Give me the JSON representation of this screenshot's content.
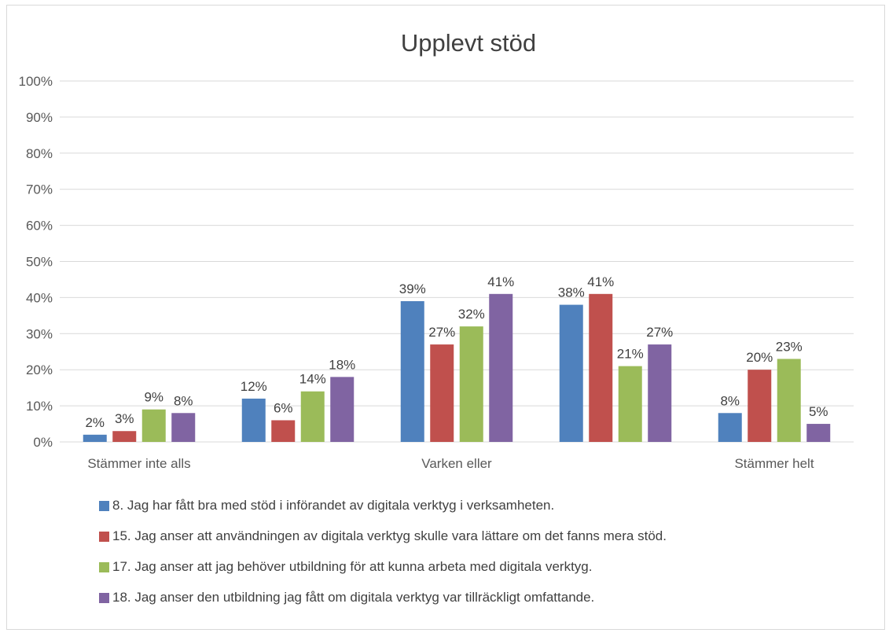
{
  "chart_data": {
    "type": "bar",
    "title": "Upplevt stöd",
    "categories": [
      "Stämmer inte alls",
      "",
      "Varken eller",
      "",
      "Stämmer helt"
    ],
    "series": [
      {
        "name": "8. Jag har fått bra med stöd i införandet av digitala verktyg i verksamheten.",
        "color": "#4f81bd",
        "values": [
          2,
          12,
          39,
          38,
          8
        ],
        "labels": [
          "2%",
          "12%",
          "39%",
          "38%",
          "8%"
        ]
      },
      {
        "name": "15. Jag anser att användningen av digitala verktyg skulle vara lättare om det fanns mera stöd.",
        "color": "#c0504d",
        "values": [
          3,
          6,
          27,
          41,
          20
        ],
        "labels": [
          "3%",
          "6%",
          "27%",
          "41%",
          "20%"
        ]
      },
      {
        "name": "17. Jag anser att jag behöver utbildning för att kunna arbeta med digitala verktyg.",
        "color": "#9bbb59",
        "values": [
          9,
          14,
          32,
          21,
          23
        ],
        "labels": [
          "9%",
          "14%",
          "32%",
          "21%",
          "23%"
        ]
      },
      {
        "name": "18. Jag anser den utbildning jag fått om digitala verktyg var tillräckligt omfattande.",
        "color": "#8064a2",
        "values": [
          8,
          18,
          41,
          27,
          5
        ],
        "labels": [
          "8%",
          "18%",
          "41%",
          "27%",
          "5%"
        ]
      }
    ],
    "ylim": [
      0,
      100
    ],
    "yticks": [
      "0%",
      "10%",
      "20%",
      "30%",
      "40%",
      "50%",
      "60%",
      "70%",
      "80%",
      "90%",
      "100%"
    ],
    "grid": true,
    "legend_position": "bottom"
  }
}
